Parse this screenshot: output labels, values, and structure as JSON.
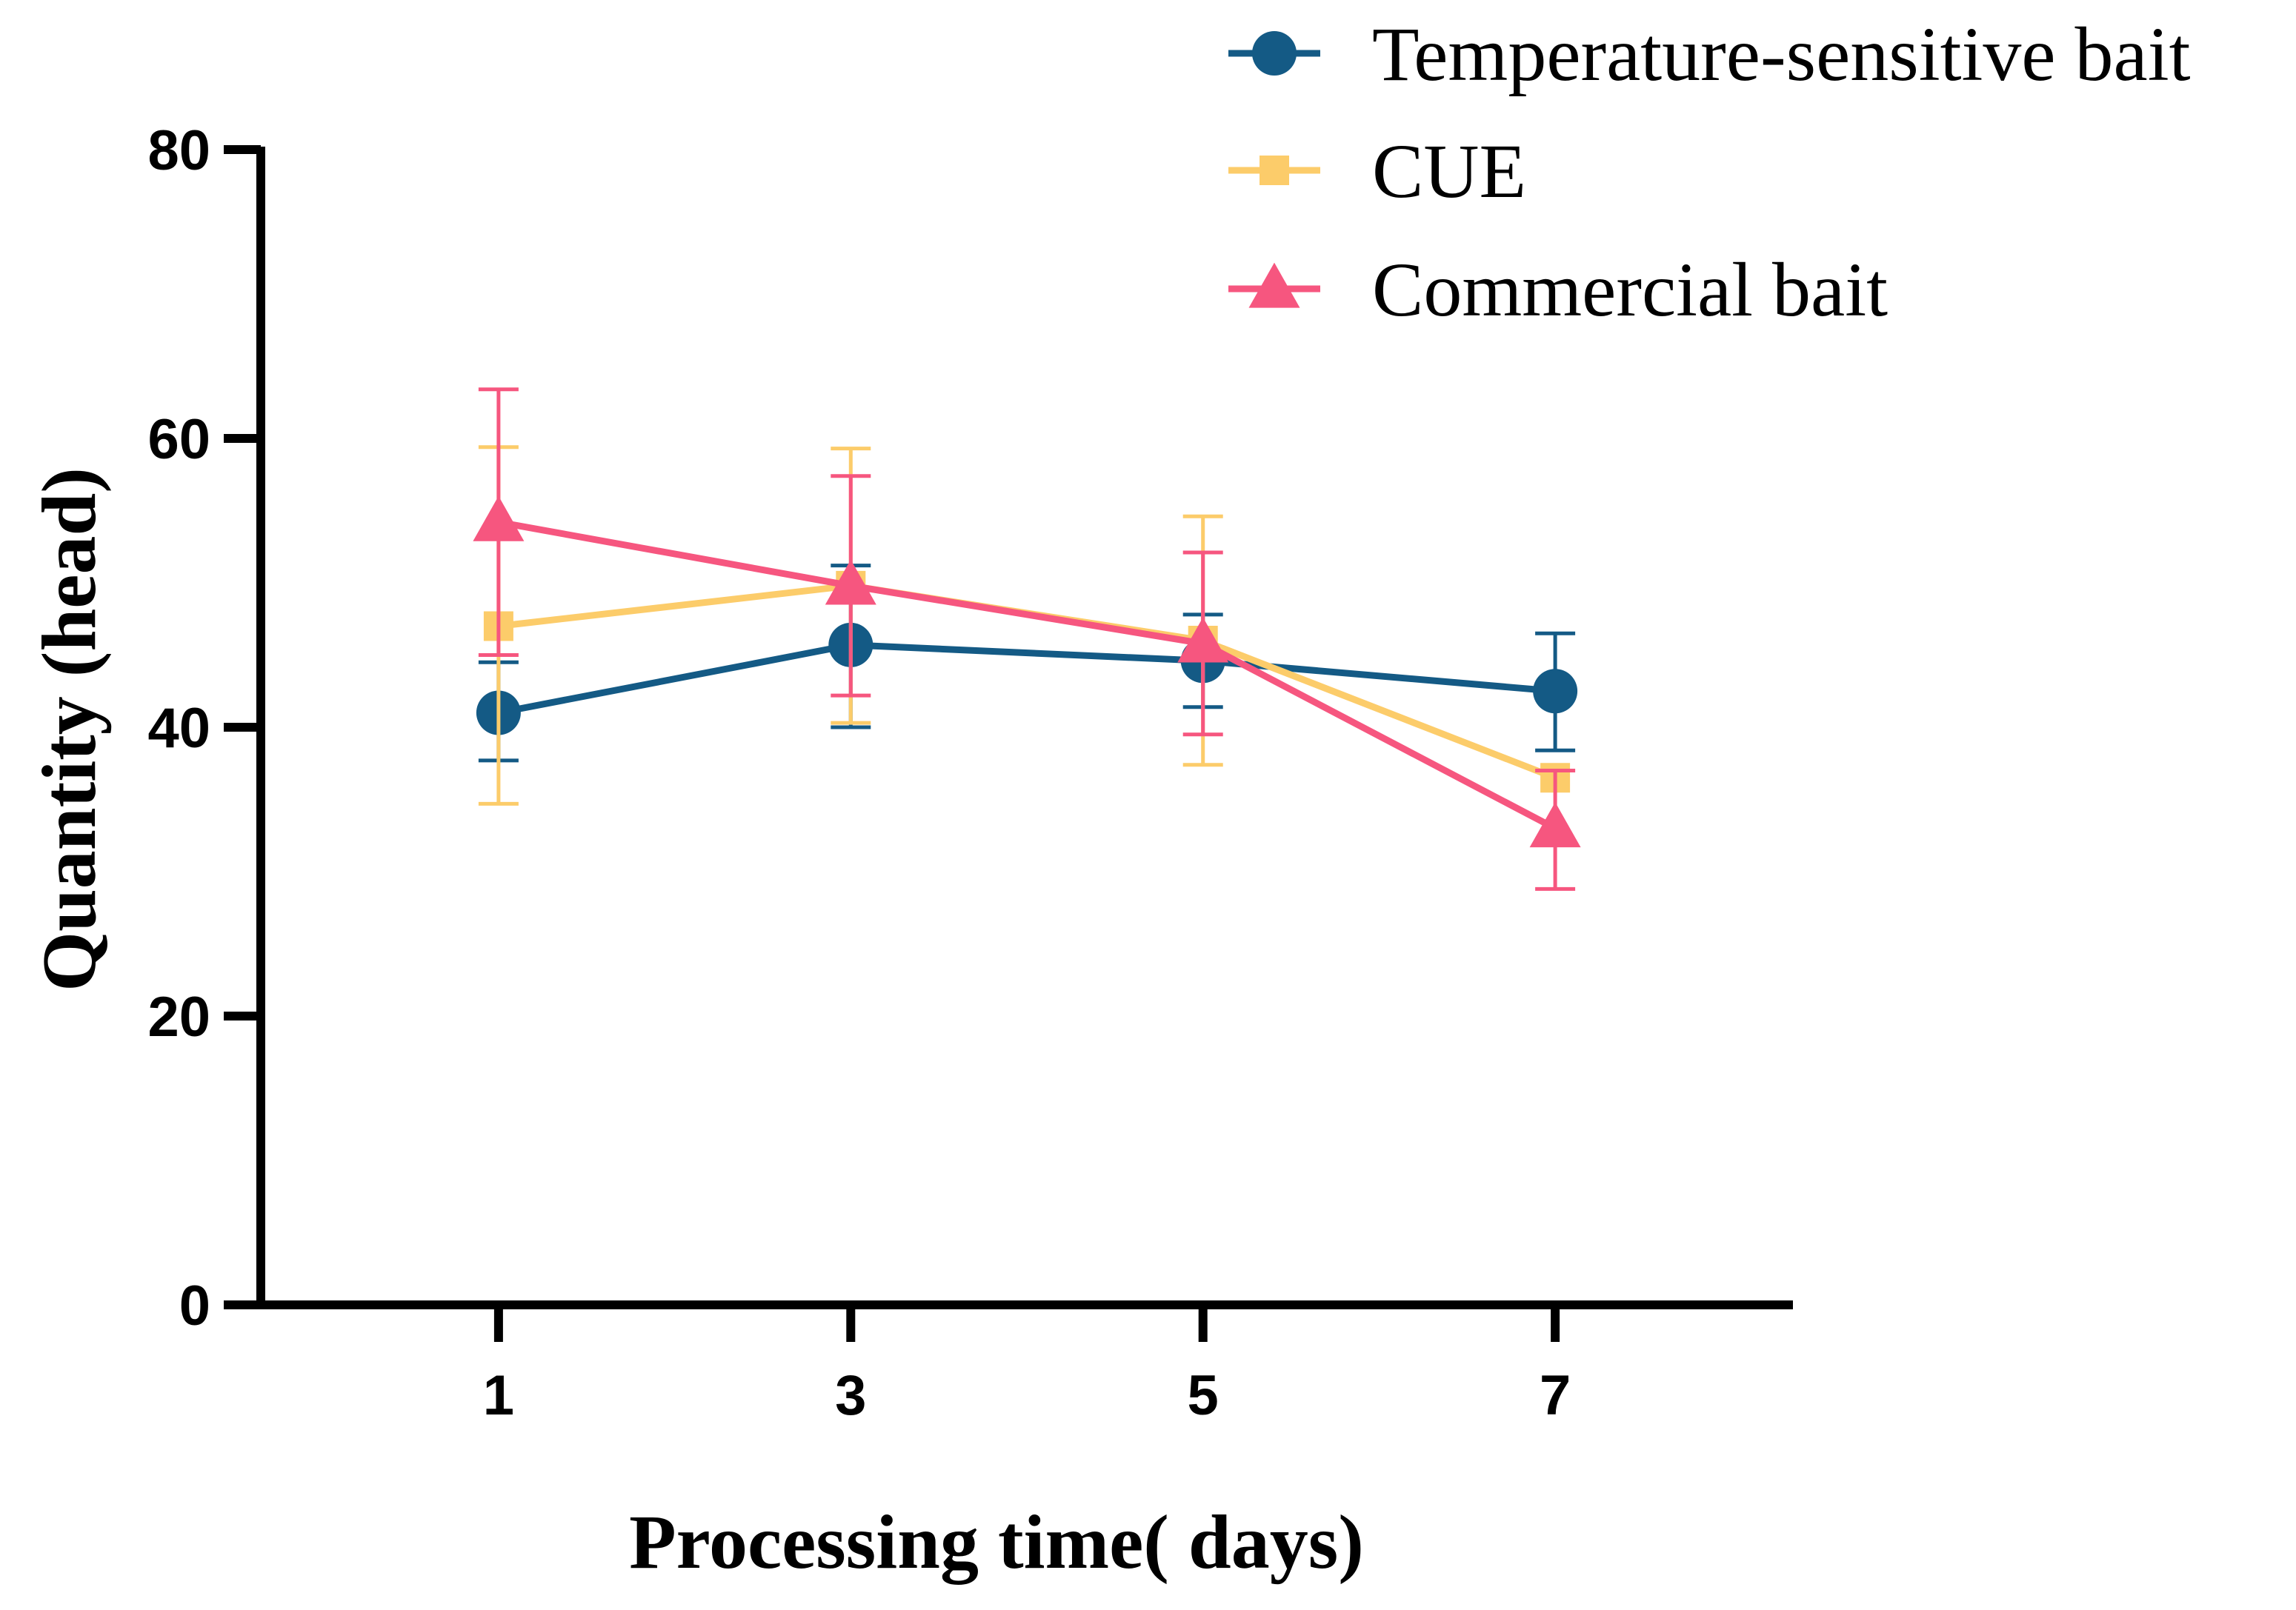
{
  "chart_data": {
    "type": "line",
    "title": "",
    "xlabel": "Processing time( days)",
    "ylabel": "Quantity (head)",
    "x": [
      1,
      3,
      5,
      7
    ],
    "xlim": [
      -0.35,
      8.35
    ],
    "ylim": [
      0,
      80
    ],
    "yticks": [
      0,
      20,
      40,
      60,
      80
    ],
    "xticks": [
      1,
      3,
      5,
      7
    ],
    "grid": false,
    "legend_position": "top-right",
    "series": [
      {
        "name": "Temperature-sensitive bait",
        "color": "#145a85",
        "marker": "circle",
        "values": [
          41.0,
          45.7,
          44.6,
          42.5
        ],
        "err_upper": [
          44.5,
          51.2,
          47.8,
          46.5
        ],
        "err_lower": [
          37.7,
          40.0,
          41.4,
          38.4
        ]
      },
      {
        "name": "CUE",
        "color": "#fccc6a",
        "marker": "square",
        "values": [
          47.0,
          49.8,
          46.0,
          36.5
        ],
        "err_upper": [
          59.4,
          59.3,
          54.6,
          36.5
        ],
        "err_lower": [
          34.7,
          40.3,
          37.4,
          36.5
        ]
      },
      {
        "name": "Commercial bait",
        "color": "#f6567f",
        "marker": "triangle",
        "values": [
          54.2,
          49.8,
          45.8,
          33.0
        ],
        "err_upper": [
          63.4,
          57.4,
          52.1,
          37.0
        ],
        "err_lower": [
          45.0,
          42.2,
          39.5,
          28.8
        ]
      }
    ]
  }
}
